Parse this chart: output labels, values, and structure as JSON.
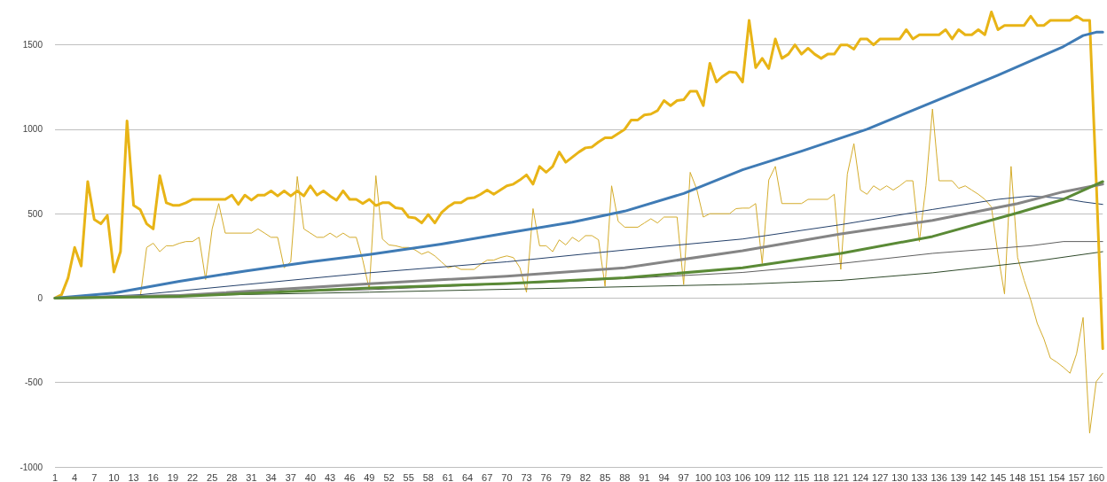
{
  "chart_data": {
    "type": "line",
    "xlim": [
      1,
      161
    ],
    "ylim": [
      -1000,
      1750
    ],
    "xticks": [
      1,
      4,
      7,
      10,
      13,
      16,
      19,
      22,
      25,
      28,
      31,
      34,
      37,
      40,
      43,
      46,
      49,
      52,
      55,
      58,
      61,
      64,
      67,
      70,
      73,
      76,
      79,
      82,
      85,
      88,
      91,
      94,
      97,
      100,
      103,
      106,
      109,
      112,
      115,
      118,
      121,
      124,
      127,
      130,
      133,
      136,
      139,
      142,
      145,
      148,
      151,
      154,
      157,
      160
    ],
    "yticks": [
      -1000,
      -500,
      0,
      500,
      1000,
      1500
    ],
    "grid": "y",
    "marker": "none",
    "line_style": "solid",
    "series": [
      {
        "color": "#e8b416",
        "x": [
          1,
          2,
          3,
          4,
          5,
          6,
          7,
          8,
          9,
          10,
          11,
          12,
          13,
          14,
          15,
          16,
          17,
          18,
          19,
          20,
          21,
          22,
          27,
          28,
          29,
          30,
          31,
          32,
          33,
          34,
          35,
          36,
          37,
          38,
          39,
          40,
          41,
          42,
          43,
          44,
          45,
          46,
          47,
          48,
          49,
          50,
          51,
          52,
          53,
          54,
          55,
          56,
          57,
          58,
          59,
          60,
          61,
          62,
          63,
          64,
          65,
          66,
          67,
          68,
          69,
          70,
          71,
          72,
          73,
          74,
          75,
          76,
          77,
          78,
          79,
          80,
          81,
          82,
          83,
          84,
          85,
          86,
          87,
          88,
          89,
          90,
          91,
          92,
          93,
          94,
          95,
          96,
          97,
          98,
          99,
          100,
          101,
          102,
          103,
          104,
          105,
          106,
          107,
          108,
          109,
          110,
          111,
          112,
          113,
          114,
          115,
          116,
          117,
          118,
          119,
          120,
          121,
          122,
          123,
          124,
          125,
          126,
          127,
          130,
          131,
          132,
          133,
          136,
          137,
          138,
          139,
          140,
          141,
          142,
          143,
          144,
          145,
          146,
          149,
          150,
          151,
          152,
          153,
          156,
          157,
          158,
          159,
          160,
          161
        ],
        "values": [
          0,
          20,
          120,
          300,
          190,
          690,
          465,
          440,
          490,
          155,
          275,
          1050,
          550,
          525,
          440,
          410,
          725,
          565,
          550,
          550,
          565,
          585,
          585,
          610,
          555,
          610,
          580,
          610,
          610,
          635,
          605,
          635,
          605,
          635,
          605,
          665,
          610,
          635,
          605,
          580,
          635,
          585,
          585,
          560,
          585,
          548,
          565,
          565,
          535,
          530,
          480,
          475,
          445,
          495,
          445,
          505,
          540,
          565,
          565,
          590,
          595,
          615,
          640,
          615,
          640,
          665,
          675,
          700,
          730,
          675,
          780,
          745,
          780,
          865,
          805,
          835,
          865,
          890,
          895,
          925,
          950,
          950,
          975,
          1000,
          1055,
          1055,
          1085,
          1090,
          1110,
          1170,
          1140,
          1170,
          1175,
          1225,
          1225,
          1140,
          1390,
          1280,
          1315,
          1340,
          1335,
          1280,
          1645,
          1365,
          1420,
          1360,
          1535,
          1420,
          1445,
          1500,
          1445,
          1480,
          1445,
          1420,
          1445,
          1445,
          1500,
          1500,
          1475,
          1535,
          1535,
          1500,
          1535,
          1535,
          1590,
          1535,
          1560,
          1560,
          1590,
          1535,
          1590,
          1560,
          1560,
          1590,
          1560,
          1695,
          1590,
          1615,
          1615,
          1670,
          1615,
          1615,
          1645,
          1645,
          1670,
          1645,
          1645,
          700,
          -300
        ]
      },
      {
        "color": "#d4ac2c",
        "x": [
          14,
          15,
          16,
          17,
          18,
          19,
          20,
          21,
          22,
          23,
          24,
          25,
          26,
          27,
          31,
          32,
          33,
          34,
          35,
          36,
          37,
          38,
          39,
          40,
          41,
          42,
          43,
          44,
          45,
          46,
          47,
          48,
          49,
          50,
          51,
          52,
          53,
          54,
          55,
          56,
          57,
          58,
          59,
          60,
          61,
          62,
          63,
          64,
          65,
          66,
          67,
          68,
          69,
          70,
          71,
          72,
          73,
          74,
          75,
          76,
          77,
          78,
          79,
          80,
          81,
          82,
          83,
          84,
          85,
          86,
          87,
          88,
          90,
          91,
          92,
          93,
          94,
          96,
          97,
          98,
          99,
          100,
          101,
          104,
          105,
          106,
          107,
          108,
          109,
          110,
          111,
          112,
          115,
          116,
          119,
          120,
          121,
          122,
          123,
          124,
          125,
          126,
          127,
          128,
          129,
          130,
          131,
          132,
          133,
          134,
          135,
          136,
          138,
          139,
          140,
          141,
          142,
          143,
          144,
          145,
          146,
          147,
          148,
          149,
          150,
          151,
          152,
          153,
          154,
          155,
          156,
          157,
          158,
          159,
          160,
          161
        ],
        "values": [
          0,
          300,
          325,
          275,
          310,
          310,
          325,
          335,
          335,
          360,
          110,
          410,
          560,
          385,
          385,
          410,
          385,
          360,
          360,
          180,
          215,
          720,
          410,
          385,
          360,
          360,
          385,
          360,
          385,
          360,
          360,
          225,
          50,
          725,
          350,
          315,
          310,
          300,
          300,
          285,
          260,
          275,
          250,
          215,
          180,
          190,
          170,
          170,
          170,
          200,
          225,
          225,
          240,
          250,
          240,
          180,
          35,
          530,
          310,
          310,
          275,
          345,
          315,
          360,
          335,
          370,
          370,
          345,
          70,
          665,
          455,
          420,
          420,
          445,
          470,
          445,
          480,
          480,
          80,
          745,
          645,
          480,
          500,
          500,
          530,
          533,
          533,
          560,
          205,
          700,
          780,
          560,
          560,
          585,
          585,
          615,
          170,
          735,
          915,
          640,
          615,
          665,
          640,
          665,
          640,
          665,
          695,
          695,
          335,
          665,
          1120,
          695,
          695,
          650,
          665,
          640,
          615,
          585,
          540,
          260,
          25,
          780,
          240,
          105,
          -10,
          -150,
          -240,
          -355,
          -380,
          -410,
          -445,
          -330,
          -115,
          -800,
          -495,
          -445
        ]
      },
      {
        "color": "#3f7bb5",
        "x": [
          1,
          10,
          20,
          30,
          40,
          49,
          60,
          70,
          80,
          88,
          97,
          106,
          115,
          125,
          135,
          145,
          155,
          158,
          160,
          161
        ],
        "values": [
          0,
          30,
          100,
          160,
          215,
          258,
          320,
          385,
          450,
          515,
          620,
          760,
          870,
          1000,
          1160,
          1320,
          1490,
          1555,
          1575,
          1575
        ]
      },
      {
        "color": "#24406a",
        "x": [
          1,
          14,
          30,
          49,
          70,
          88,
          106,
          121,
          135,
          145,
          150,
          155,
          158,
          161
        ],
        "values": [
          0,
          20,
          80,
          150,
          215,
          285,
          350,
          435,
          525,
          585,
          605,
          590,
          570,
          555
        ]
      },
      {
        "color": "#858585",
        "x": [
          1,
          20,
          49,
          70,
          88,
          106,
          121,
          135,
          148,
          155,
          161
        ],
        "values": [
          0,
          15,
          85,
          130,
          180,
          280,
          380,
          460,
          560,
          630,
          675
        ]
      },
      {
        "color": "#5a8a36",
        "x": [
          1,
          20,
          49,
          70,
          88,
          106,
          121,
          135,
          148,
          155,
          161
        ],
        "values": [
          0,
          10,
          60,
          87,
          120,
          180,
          265,
          365,
          505,
          585,
          690
        ]
      },
      {
        "color": "#5f5f5f",
        "x": [
          1,
          49,
          80,
          106,
          121,
          135,
          150,
          155,
          161
        ],
        "values": [
          0,
          50,
          100,
          152,
          205,
          265,
          310,
          335,
          335
        ]
      },
      {
        "color": "#2f4a2a",
        "x": [
          1,
          49,
          106,
          121,
          135,
          150,
          161
        ],
        "values": [
          0,
          35,
          82,
          105,
          150,
          215,
          275
        ]
      }
    ]
  }
}
